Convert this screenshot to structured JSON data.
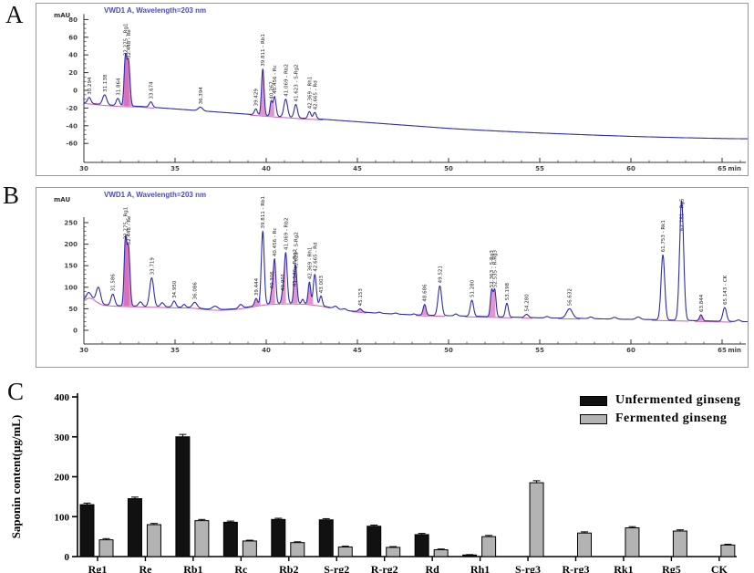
{
  "panel_letters": {
    "a": "A",
    "b": "B",
    "c": "C"
  },
  "chart_data": [
    {
      "id": "a",
      "type": "line",
      "subtype": "chromatogram",
      "title": "VWD1 A, Wavelength=203 nm",
      "y_unit": "mAU",
      "x_unit": "min",
      "x_ticks": [
        30,
        35,
        40,
        45,
        50,
        55,
        60,
        65
      ],
      "y_ticks": [
        80,
        60,
        40,
        20,
        0,
        -20,
        -40,
        -60
      ],
      "x_range": [
        30,
        66.4
      ],
      "y_range": [
        -85,
        95
      ],
      "line_color": "#2d2db0",
      "integration_color": "#d45cb2",
      "baseline": [
        [
          30,
          -14
        ],
        [
          31,
          -16
        ],
        [
          32,
          -17.5
        ],
        [
          33,
          -18
        ],
        [
          34,
          -19.5
        ],
        [
          35,
          -21
        ],
        [
          36,
          -22.5
        ],
        [
          37,
          -24
        ],
        [
          38,
          -25.5
        ],
        [
          39,
          -27
        ],
        [
          40,
          -28.5
        ],
        [
          41,
          -30
        ],
        [
          42,
          -31.5
        ],
        [
          43,
          -32.5
        ],
        [
          44,
          -34
        ],
        [
          45,
          -35.5
        ],
        [
          46,
          -37
        ],
        [
          47,
          -38.5
        ],
        [
          48,
          -40
        ],
        [
          49,
          -41.5
        ],
        [
          50,
          -43
        ],
        [
          51,
          -44.2
        ],
        [
          52,
          -45.3
        ],
        [
          53,
          -46.3
        ],
        [
          54,
          -47.3
        ],
        [
          55,
          -48.2
        ],
        [
          56,
          -49
        ],
        [
          57,
          -49.8
        ],
        [
          58,
          -50.6
        ],
        [
          59,
          -51.3
        ],
        [
          60,
          -52
        ],
        [
          61,
          -52.6
        ],
        [
          62,
          -53.1
        ],
        [
          63,
          -53.6
        ],
        [
          64,
          -54
        ],
        [
          65,
          -54.4
        ],
        [
          66.4,
          -54.8
        ]
      ],
      "peaks": [
        {
          "t": 30.294,
          "v": -8,
          "w": 0.09,
          "label": "30.294"
        },
        {
          "t": 31.138,
          "v": -5,
          "w": 0.11,
          "label": "31.138"
        },
        {
          "t": 31.864,
          "v": -9,
          "w": 0.09,
          "label": "31.864"
        },
        {
          "t": 32.275,
          "v": 36,
          "w": 0.07,
          "label": "32.275 - Rg1",
          "pink": true
        },
        {
          "t": 32.448,
          "v": 33,
          "w": 0.08,
          "label": "32.448 - Re",
          "pink": true
        },
        {
          "t": 33.674,
          "v": -13,
          "w": 0.09,
          "label": "33.674"
        },
        {
          "t": 36.394,
          "v": -19,
          "w": 0.12,
          "label": "36.394"
        },
        {
          "t": 39.429,
          "v": -21,
          "w": 0.08,
          "label": "39.429"
        },
        {
          "t": 39.811,
          "v": 24,
          "w": 0.07,
          "label": "39.811 - Rb1",
          "pink": true
        },
        {
          "t": 40.267,
          "v": -13,
          "w": 0.06,
          "label": "40.267",
          "pink": true
        },
        {
          "t": 40.456,
          "v": -7,
          "w": 0.08,
          "label": "40.456 - Rc"
        },
        {
          "t": 41.069,
          "v": -10,
          "w": 0.1,
          "label": "41.069 - Rb2"
        },
        {
          "t": 41.623,
          "v": -16,
          "w": 0.09,
          "label": "41.623 - S-Rg2"
        },
        {
          "t": 42.369,
          "v": -24,
          "w": 0.08,
          "label": "42.369 - Rh1"
        },
        {
          "t": 42.665,
          "v": -25,
          "w": 0.08,
          "label": "42.665 - Rd"
        }
      ],
      "integration_regions": [
        [
          30.05,
          34.0
        ],
        [
          39.1,
          43.3
        ]
      ]
    },
    {
      "id": "b",
      "type": "line",
      "subtype": "chromatogram",
      "title": "VWD1 A, Wavelength=203 nm",
      "y_unit": "mAU",
      "x_unit": "min",
      "x_ticks": [
        30,
        35,
        40,
        45,
        50,
        55,
        60,
        65
      ],
      "y_ticks": [
        250,
        200,
        150,
        100,
        50,
        0
      ],
      "x_range": [
        30,
        66.4
      ],
      "y_range": [
        -10,
        320
      ],
      "line_color": "#2d2db0",
      "integration_color": "#d45cb2",
      "baseline": [
        [
          30,
          72
        ],
        [
          30.4,
          78
        ],
        [
          30.6,
          70
        ],
        [
          31,
          60
        ],
        [
          31.5,
          58
        ],
        [
          32,
          57
        ],
        [
          33,
          56
        ],
        [
          34,
          55
        ],
        [
          35,
          54
        ],
        [
          36,
          53
        ],
        [
          36.8,
          49
        ],
        [
          37.5,
          48
        ],
        [
          38.3,
          50
        ],
        [
          39,
          54
        ],
        [
          39.5,
          58
        ],
        [
          40,
          61
        ],
        [
          40.8,
          63
        ],
        [
          41.5,
          63
        ],
        [
          42.2,
          62
        ],
        [
          43,
          58
        ],
        [
          43.6,
          52
        ],
        [
          44,
          49
        ],
        [
          44.6,
          45
        ],
        [
          45.2,
          43
        ],
        [
          46,
          40
        ],
        [
          47,
          38
        ],
        [
          48,
          36
        ],
        [
          49,
          35
        ],
        [
          50,
          34
        ],
        [
          51,
          33
        ],
        [
          52,
          32
        ],
        [
          53,
          31
        ],
        [
          54,
          30
        ],
        [
          55,
          29
        ],
        [
          56,
          28.5
        ],
        [
          57,
          28
        ],
        [
          58,
          27
        ],
        [
          59,
          26
        ],
        [
          60,
          25.5
        ],
        [
          61,
          25
        ],
        [
          62,
          24
        ],
        [
          63,
          23
        ],
        [
          64,
          22
        ],
        [
          65,
          21
        ],
        [
          66.4,
          20
        ]
      ],
      "peaks": [
        {
          "t": 30.25,
          "v": 88,
          "w": 0.1
        },
        {
          "t": 30.8,
          "v": 100,
          "w": 0.12
        },
        {
          "t": 31.586,
          "v": 84,
          "w": 0.1,
          "label": "31.586"
        },
        {
          "t": 32.275,
          "v": 205,
          "w": 0.07,
          "label": "32.275 - Rg1",
          "pink": true
        },
        {
          "t": 32.448,
          "v": 192,
          "w": 0.08,
          "label": "32.448 - Re",
          "pink": true
        },
        {
          "t": 33.1,
          "v": 66,
          "w": 0.1
        },
        {
          "t": 33.719,
          "v": 122,
          "w": 0.11,
          "label": "33.719"
        },
        {
          "t": 34.3,
          "v": 64,
          "w": 0.1
        },
        {
          "t": 34.95,
          "v": 68,
          "w": 0.09,
          "label": "34.950"
        },
        {
          "t": 35.5,
          "v": 60,
          "w": 0.08
        },
        {
          "t": 36.086,
          "v": 65,
          "w": 0.12,
          "label": "36.086"
        },
        {
          "t": 37.2,
          "v": 56,
          "w": 0.15
        },
        {
          "t": 38.6,
          "v": 60,
          "w": 0.1
        },
        {
          "t": 39.444,
          "v": 74,
          "w": 0.08,
          "label": "39.444",
          "pink": true
        },
        {
          "t": 39.811,
          "v": 230,
          "w": 0.08,
          "label": "39.811 - Rb1"
        },
        {
          "t": 40.306,
          "v": 90,
          "w": 0.06,
          "label": "40.306",
          "pink": true
        },
        {
          "t": 40.456,
          "v": 165,
          "w": 0.07,
          "label": "40.456 - Rc"
        },
        {
          "t": 40.901,
          "v": 85,
          "w": 0.06,
          "label": "40.901",
          "pink": true
        },
        {
          "t": 41.069,
          "v": 180,
          "w": 0.08,
          "label": "41.069 - Rb2"
        },
        {
          "t": 41.546,
          "v": 95,
          "w": 0.06,
          "label": "41.546 - R-Rg2",
          "pink": true
        },
        {
          "t": 41.623,
          "v": 135,
          "w": 0.07,
          "label": "41.623 - S-Rg2"
        },
        {
          "t": 42.0,
          "v": 72,
          "w": 0.06
        },
        {
          "t": 42.369,
          "v": 112,
          "w": 0.07,
          "label": "42.369 - Rh1",
          "pink": true
        },
        {
          "t": 42.665,
          "v": 130,
          "w": 0.08,
          "label": "42.665 - Rd"
        },
        {
          "t": 43.003,
          "v": 80,
          "w": 0.07,
          "label": "43.003"
        },
        {
          "t": 43.8,
          "v": 56,
          "w": 0.1
        },
        {
          "t": 44.3,
          "v": 50,
          "w": 0.09
        },
        {
          "t": 45.153,
          "v": 50,
          "w": 0.09,
          "label": "45.153",
          "pink": true
        },
        {
          "t": 46.2,
          "v": 42,
          "w": 0.1
        },
        {
          "t": 47.1,
          "v": 40,
          "w": 0.1
        },
        {
          "t": 48.1,
          "v": 38,
          "w": 0.08
        },
        {
          "t": 48.686,
          "v": 60,
          "w": 0.08,
          "label": "48.686",
          "pink": true
        },
        {
          "t": 49.521,
          "v": 103,
          "w": 0.1,
          "label": "49.521"
        },
        {
          "t": 50.4,
          "v": 38,
          "w": 0.09
        },
        {
          "t": 51.28,
          "v": 70,
          "w": 0.09,
          "label": "51.280"
        },
        {
          "t": 52.363,
          "v": 93,
          "w": 0.07,
          "label": "52.363 - S-Rg3",
          "pink": true
        },
        {
          "t": 52.535,
          "v": 93,
          "w": 0.07,
          "label": "52.535 - R-Rg3"
        },
        {
          "t": 53.198,
          "v": 63,
          "w": 0.08,
          "label": "53.198"
        },
        {
          "t": 54.28,
          "v": 37,
          "w": 0.1,
          "label": "54.280"
        },
        {
          "t": 55.4,
          "v": 32,
          "w": 0.1
        },
        {
          "t": 56.632,
          "v": 50,
          "w": 0.16,
          "label": "56.632"
        },
        {
          "t": 57.8,
          "v": 31,
          "w": 0.1
        },
        {
          "t": 59.1,
          "v": 30,
          "w": 0.12
        },
        {
          "t": 60.4,
          "v": 31,
          "w": 0.12
        },
        {
          "t": 61.753,
          "v": 175,
          "w": 0.1,
          "label": "61.753 - Rk1"
        },
        {
          "t": 62.781,
          "v": 300,
          "w": 0.11,
          "label": "62.781 - Rg5"
        },
        {
          "t": 63.844,
          "v": 36,
          "w": 0.08,
          "label": "63.844",
          "pink": true
        },
        {
          "t": 65.143,
          "v": 53,
          "w": 0.1,
          "label": "65.143 - CK"
        },
        {
          "t": 65.9,
          "v": 24,
          "w": 0.1
        }
      ],
      "integration_regions": [
        [
          30.1,
          43.7
        ],
        [
          44.7,
          45.6
        ],
        [
          48.2,
          49.95
        ],
        [
          50.9,
          53.65
        ],
        [
          54.0,
          54.7
        ],
        [
          56.0,
          57.3
        ],
        [
          61.15,
          63.25
        ],
        [
          63.5,
          65.7
        ]
      ]
    },
    {
      "id": "c",
      "type": "bar",
      "ylabel": "Saponin content(μg/mL)",
      "ylim": [
        0,
        400
      ],
      "yticks": [
        0,
        100,
        200,
        300,
        400
      ],
      "categories": [
        "Rg1",
        "Re",
        "Rb1",
        "Rc",
        "Rb2",
        "S-rg2",
        "R-rg2",
        "Rd",
        "Rh1",
        "S-rg3",
        "R-rg3",
        "Rk1",
        "Rg5",
        "CK"
      ],
      "series": [
        {
          "name": "Unfermented ginseng",
          "color": "#111111",
          "values": [
            130,
            145,
            300,
            86,
            93,
            92,
            76,
            55,
            4,
            0,
            0,
            0,
            0,
            0
          ],
          "errors": [
            4,
            4,
            6,
            3,
            3,
            3,
            3,
            3,
            1,
            0,
            0,
            0,
            0,
            0
          ]
        },
        {
          "name": "Fermented ginseng",
          "color": "#b3b3b3",
          "values": [
            42,
            80,
            90,
            39,
            35,
            24,
            23,
            17,
            50,
            185,
            59,
            72,
            64,
            29
          ],
          "errors": [
            3,
            3,
            3,
            2,
            2,
            2,
            2,
            2,
            3,
            5,
            3,
            3,
            3,
            2
          ]
        }
      ],
      "legend_position": "top-right"
    }
  ]
}
